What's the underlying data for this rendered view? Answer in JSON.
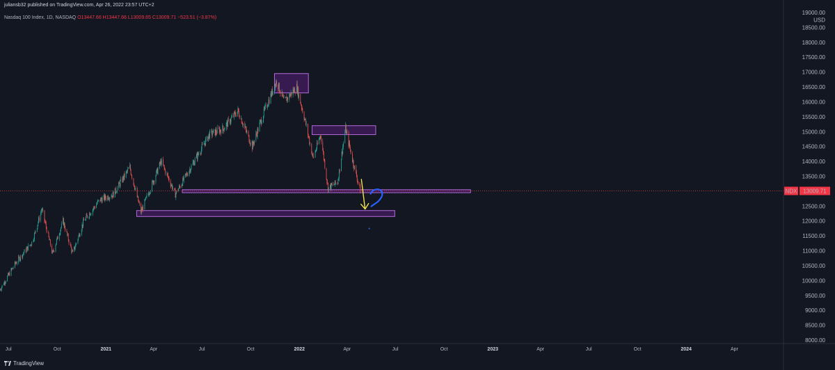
{
  "header": {
    "publisher": "juliansb32 published on TradingView.com, Apr 26, 2022 23:57 UTC+2"
  },
  "legend": {
    "symbol": "Nasdaq 100 Index, 1D, NASDAQ",
    "ohlc": "O13447.66  H13447.66  L13009.65  C13009.71  −523.51 (−3.87%)"
  },
  "currency": "USD",
  "ticker_badge": "NDX",
  "price_badge": "13009.71",
  "footer": {
    "brand": "TradingView"
  },
  "colors": {
    "background": "#131722",
    "up": "#26a69a",
    "down": "#ef5350",
    "zone_fill": "#7b1fa2",
    "zone_stroke": "#b36bd9",
    "price_line": "#f23645",
    "arrow": "#f5e44a",
    "question_mark": "#2962ff"
  },
  "chart_data": {
    "type": "candlestick",
    "ylim": [
      8000,
      19000
    ],
    "y_ticks": [
      "19000.00",
      "18500.00",
      "18000.00",
      "17500.00",
      "17000.00",
      "16500.00",
      "16000.00",
      "15500.00",
      "15000.00",
      "14500.00",
      "14000.00",
      "13500.00",
      "13000.00",
      "12500.00",
      "12000.00",
      "11500.00",
      "11000.00",
      "10500.00",
      "10000.00",
      "9500.00",
      "9000.00",
      "8500.00",
      "8000.00"
    ],
    "x_range": [
      "2020-06-15",
      "2024-06-30"
    ],
    "x_ticks": [
      {
        "label": "Jul",
        "date": "2020-07-01",
        "year": false
      },
      {
        "label": "Oct",
        "date": "2020-10-01",
        "year": false
      },
      {
        "label": "2021",
        "date": "2021-01-01",
        "year": true
      },
      {
        "label": "Apr",
        "date": "2021-04-01",
        "year": false
      },
      {
        "label": "Jul",
        "date": "2021-07-01",
        "year": false
      },
      {
        "label": "Oct",
        "date": "2021-10-01",
        "year": false
      },
      {
        "label": "2022",
        "date": "2022-01-01",
        "year": true
      },
      {
        "label": "Apr",
        "date": "2022-04-01",
        "year": false
      },
      {
        "label": "Jul",
        "date": "2022-07-01",
        "year": false
      },
      {
        "label": "Oct",
        "date": "2022-10-01",
        "year": false
      },
      {
        "label": "2023",
        "date": "2023-01-01",
        "year": true
      },
      {
        "label": "Apr",
        "date": "2023-04-01",
        "year": false
      },
      {
        "label": "Jul",
        "date": "2023-07-01",
        "year": false
      },
      {
        "label": "Oct",
        "date": "2023-10-01",
        "year": false
      },
      {
        "label": "2024",
        "date": "2024-01-01",
        "year": true
      },
      {
        "label": "Apr",
        "date": "2024-04-01",
        "year": false
      }
    ],
    "close_path": [
      [
        "2020-06-15",
        9700
      ],
      [
        "2020-07-15",
        10600
      ],
      [
        "2020-08-15",
        11300
      ],
      [
        "2020-09-02",
        12400
      ],
      [
        "2020-09-22",
        10900
      ],
      [
        "2020-10-12",
        12000
      ],
      [
        "2020-10-30",
        10900
      ],
      [
        "2020-11-20",
        12000
      ],
      [
        "2020-12-20",
        12700
      ],
      [
        "2021-01-15",
        12900
      ],
      [
        "2021-02-15",
        13800
      ],
      [
        "2021-03-08",
        12300
      ],
      [
        "2021-04-15",
        14000
      ],
      [
        "2021-05-12",
        12900
      ],
      [
        "2021-06-10",
        13800
      ],
      [
        "2021-07-15",
        14900
      ],
      [
        "2021-08-10",
        15100
      ],
      [
        "2021-09-07",
        15700
      ],
      [
        "2021-10-04",
        14500
      ],
      [
        "2021-10-25",
        15600
      ],
      [
        "2021-11-19",
        16700
      ],
      [
        "2021-12-03",
        16000
      ],
      [
        "2021-12-27",
        16500
      ],
      [
        "2022-01-10",
        15500
      ],
      [
        "2022-01-27",
        14100
      ],
      [
        "2022-02-10",
        14900
      ],
      [
        "2022-02-24",
        13100
      ],
      [
        "2022-03-14",
        13300
      ],
      [
        "2022-03-29",
        15100
      ],
      [
        "2022-04-12",
        14000
      ],
      [
        "2022-04-26",
        13009.71
      ]
    ],
    "last_close": 13009.71,
    "zones": [
      {
        "x0": "2021-11-15",
        "x1": "2022-01-18",
        "y0": 16300,
        "y1": 16950
      },
      {
        "x0": "2022-01-25",
        "x1": "2022-05-25",
        "y0": 14900,
        "y1": 15200
      },
      {
        "x0": "2021-05-25",
        "x1": "2022-11-20",
        "y0": 12950,
        "y1": 13050
      },
      {
        "x0": "2021-02-28",
        "x1": "2022-06-30",
        "y0": 12150,
        "y1": 12350
      }
    ],
    "arrow": {
      "from": [
        "2022-04-28",
        13400
      ],
      "to": [
        "2022-05-05",
        12400
      ]
    }
  }
}
